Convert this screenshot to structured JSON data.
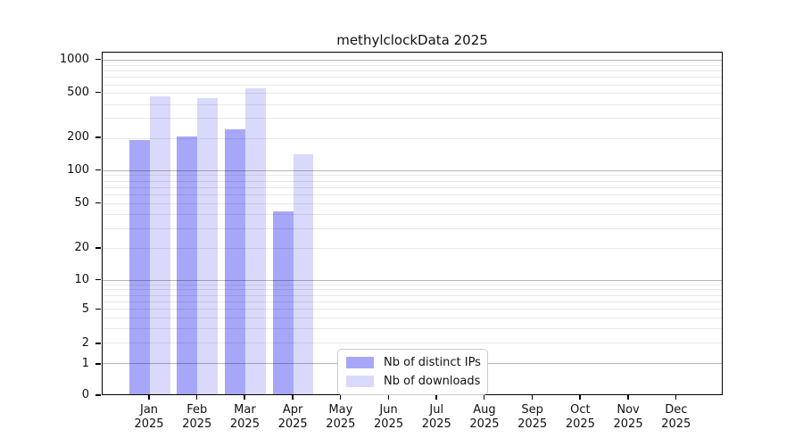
{
  "chart_data": {
    "type": "bar",
    "title": "methylclockData 2025",
    "categories": [
      "Jan",
      "Feb",
      "Mar",
      "Apr",
      "May",
      "Jun",
      "Jul",
      "Aug",
      "Sep",
      "Oct",
      "Nov",
      "Dec"
    ],
    "category_year": "2025",
    "series": [
      {
        "name": "Nb of distinct IPs",
        "color": "#a7a7f9",
        "values": [
          190,
          205,
          240,
          42,
          null,
          null,
          null,
          null,
          null,
          null,
          null,
          null
        ]
      },
      {
        "name": "Nb of downloads",
        "color": "#d9d9fb",
        "values": [
          470,
          450,
          555,
          140,
          null,
          null,
          null,
          null,
          null,
          null,
          null,
          null
        ]
      }
    ],
    "y_axis": {
      "ticks": [
        0,
        1,
        2,
        5,
        10,
        20,
        50,
        100,
        200,
        500,
        1000
      ],
      "scale": "log-like",
      "range": [
        0,
        1000
      ],
      "major_grid_ticks": [
        1,
        10,
        100,
        1000
      ]
    },
    "grid": true,
    "legend_position": "bottom-center",
    "colors": {
      "axis": "#000000",
      "grid_major": "#b8b8b8",
      "grid_minor": "#e8e8e8",
      "background": "#ffffff"
    }
  },
  "legend": {
    "items": [
      "Nb of distinct IPs",
      "Nb of downloads"
    ]
  }
}
